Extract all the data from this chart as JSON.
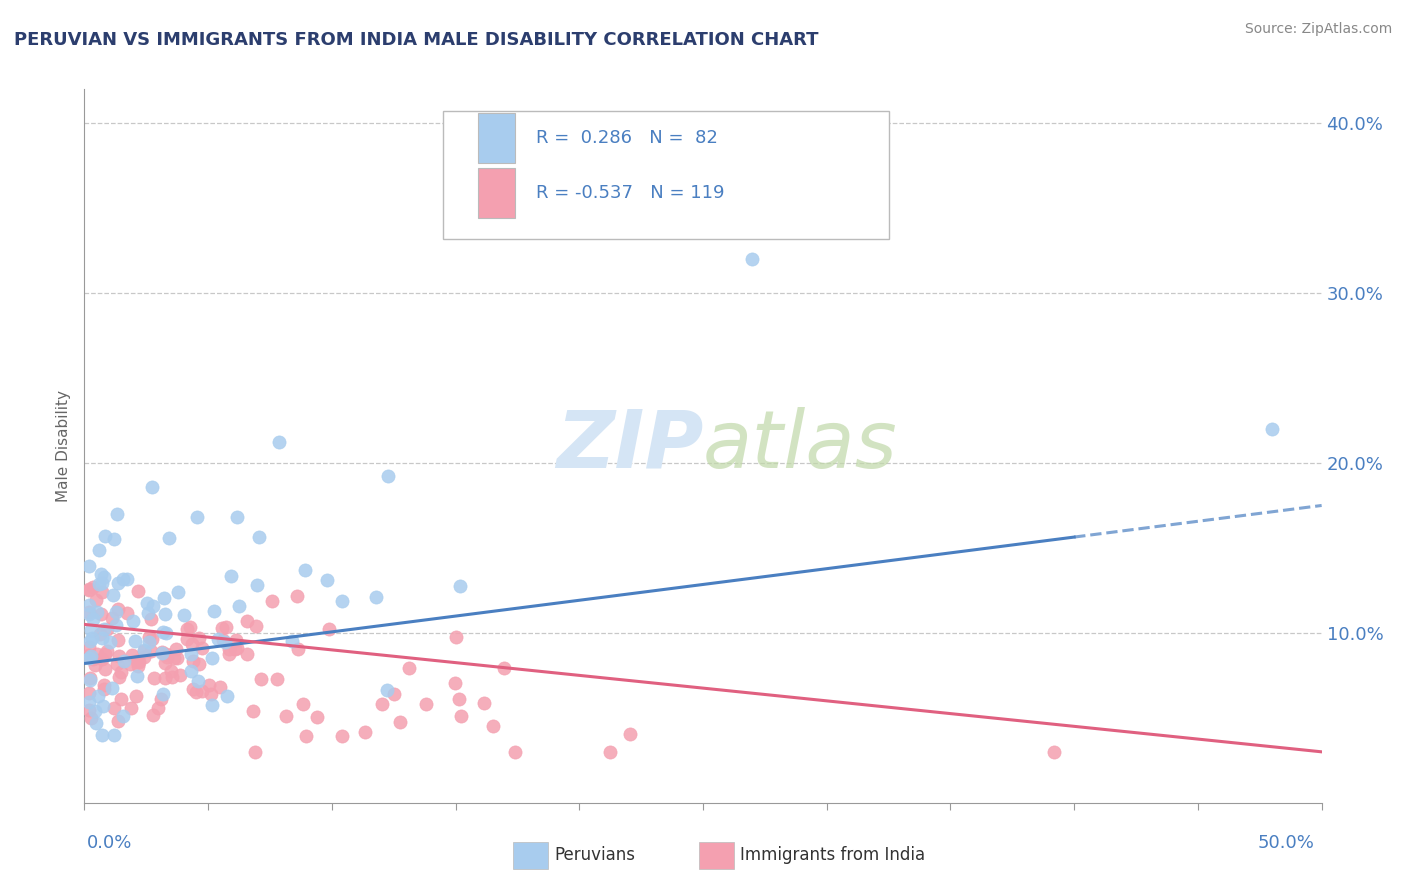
{
  "title": "PERUVIAN VS IMMIGRANTS FROM INDIA MALE DISABILITY CORRELATION CHART",
  "source": "Source: ZipAtlas.com",
  "ylabel": "Male Disability",
  "xlim": [
    0.0,
    0.5
  ],
  "ylim": [
    0.0,
    0.42
  ],
  "yticks": [
    0.1,
    0.2,
    0.3,
    0.4
  ],
  "ytick_labels": [
    "10.0%",
    "20.0%",
    "30.0%",
    "40.0%"
  ],
  "series1_color": "#a8ccee",
  "series2_color": "#f4a0b0",
  "line1_color": "#4a7fc1",
  "line2_color": "#e06080",
  "grid_color": "#c8c8c8",
  "title_color": "#2c3e6e",
  "axis_label_color": "#4a7fc1",
  "watermark_color": "#d5e5f5",
  "peru_R": 0.286,
  "peru_N": 82,
  "india_R": -0.537,
  "india_N": 119,
  "peru_line_x0": 0.0,
  "peru_line_y0": 0.082,
  "peru_line_x1": 0.5,
  "peru_line_y1": 0.175,
  "india_line_x0": 0.0,
  "india_line_y0": 0.105,
  "india_line_x1": 0.5,
  "india_line_y1": 0.03
}
